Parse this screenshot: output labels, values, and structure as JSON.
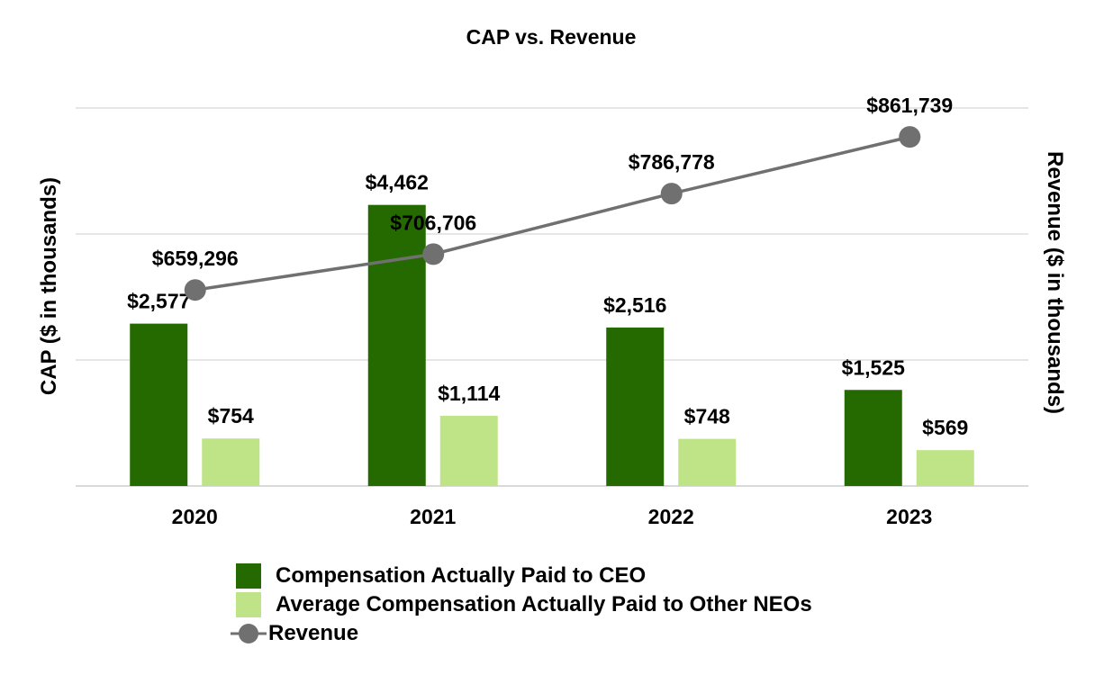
{
  "chart_data": {
    "type": "bar",
    "title": "CAP vs. Revenue",
    "ylabel": "CAP ($ in thousands)",
    "y2label": "Revenue ($ in thousands)",
    "categories": [
      "2020",
      "2021",
      "2022",
      "2023"
    ],
    "ylim": [
      0,
      6000
    ],
    "y2lim": [
      400000,
      900000
    ],
    "grid": true,
    "legend_position": "bottom",
    "series": [
      {
        "name": "Compensation Actually Paid to CEO",
        "type": "bar",
        "axis": "left",
        "color": "#246a00",
        "values": [
          2577,
          4462,
          2516,
          1525
        ],
        "labels": [
          "$2,577",
          "$4,462",
          "$2,516",
          "$1,525"
        ]
      },
      {
        "name": "Average Compensation Actually Paid to Other NEOs",
        "type": "bar",
        "axis": "left",
        "color": "#bfe487",
        "values": [
          754,
          1114,
          748,
          569
        ],
        "labels": [
          "$754",
          "$1,114",
          "$748",
          "$569"
        ]
      },
      {
        "name": "Revenue",
        "type": "line",
        "axis": "right",
        "color": "#707070",
        "values": [
          659296,
          706706,
          786778,
          861739
        ],
        "labels": [
          "$659,296",
          "$706,706",
          "$786,778",
          "$861,739"
        ]
      }
    ]
  }
}
